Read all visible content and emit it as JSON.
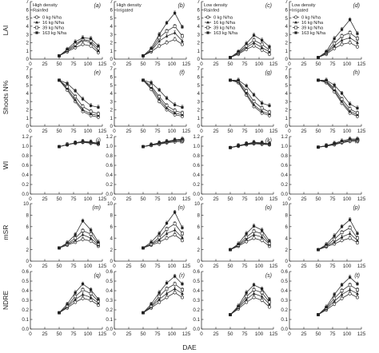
{
  "figure": {
    "xlabel": "DAE"
  },
  "legend": {
    "entries": [
      "0 kg N/ha",
      "16 kg N/ha",
      "39 kg N/ha",
      "163 kg N/ha"
    ],
    "markers": [
      "open-circle",
      "filled-triangle",
      "open-square",
      "filled-square"
    ]
  },
  "chart_data": {
    "type": "line",
    "x": [
      50,
      64,
      78,
      91,
      105,
      118
    ],
    "xlim": [
      0,
      125
    ],
    "xticks": [
      0,
      25,
      50,
      75,
      100,
      125
    ],
    "series_names": [
      "0 kg N/ha",
      "16 kg N/ha",
      "39 kg N/ha",
      "163 kg N/ha"
    ],
    "rows": [
      {
        "ylabel": "LAI",
        "ylim": [
          0,
          7
        ],
        "yticks": [
          0,
          1,
          2,
          3,
          4,
          5,
          6,
          7
        ],
        "ytick_labels": [
          "0",
          "1",
          "2",
          "3",
          "4",
          "5",
          "6",
          "7"
        ]
      },
      {
        "ylabel": "Shoots N%",
        "ylim": [
          0,
          7
        ],
        "yticks": [
          0,
          1,
          2,
          3,
          4,
          5,
          6,
          7
        ],
        "ytick_labels": [
          "0",
          "1",
          "2",
          "3",
          "4",
          "5",
          "6",
          "7"
        ]
      },
      {
        "ylabel": "WI",
        "ylim": [
          0.0,
          1.2
        ],
        "yticks": [
          0.0,
          0.2,
          0.4,
          0.6,
          0.8,
          1.0,
          1.2
        ],
        "ytick_labels": [
          "0.0",
          "0.2",
          "0.4",
          "0.6",
          "0.8",
          "1.0",
          "1.2"
        ]
      },
      {
        "ylabel": "mSR",
        "ylim": [
          0,
          10
        ],
        "yticks": [
          0,
          2,
          4,
          6,
          8,
          10
        ],
        "ytick_labels": [
          "0",
          "2",
          "4",
          "6",
          "8",
          "10"
        ]
      },
      {
        "ylabel": "NDRE",
        "ylim": [
          0.0,
          0.6
        ],
        "yticks": [
          0.0,
          0.1,
          0.2,
          0.3,
          0.4,
          0.5,
          0.6
        ],
        "ytick_labels": [
          "0.0",
          "0.1",
          "0.2",
          "0.3",
          "0.4",
          "0.5",
          "0.6"
        ]
      }
    ],
    "columns": [
      {
        "note": [
          "High density",
          "Rainfed"
        ],
        "legend": true
      },
      {
        "note": [
          "High density",
          "Irrigated"
        ],
        "legend": false
      },
      {
        "note": [
          "Low density",
          "Rainfed"
        ],
        "legend": true
      },
      {
        "note": [
          "Low density",
          "Irrigated"
        ],
        "legend": true
      }
    ],
    "panels": [
      {
        "letter": "(a)",
        "row": 0,
        "col": 0,
        "series": [
          [
            0.4,
            0.9,
            1.4,
            1.8,
            1.6,
            0.8
          ],
          [
            0.4,
            1.0,
            1.6,
            2.3,
            2.0,
            1.0
          ],
          [
            0.4,
            1.1,
            1.8,
            2.4,
            2.2,
            1.3
          ],
          [
            0.4,
            1.2,
            2.1,
            2.6,
            2.5,
            1.6
          ]
        ]
      },
      {
        "letter": "(b)",
        "row": 0,
        "col": 1,
        "series": [
          [
            0.4,
            0.9,
            1.6,
            2.0,
            2.4,
            1.8
          ],
          [
            0.4,
            1.0,
            2.2,
            2.8,
            3.2,
            2.2
          ],
          [
            0.4,
            1.1,
            2.6,
            3.4,
            4.0,
            2.8
          ],
          [
            0.4,
            1.3,
            3.0,
            4.4,
            5.6,
            3.9
          ]
        ]
      },
      {
        "letter": "(c)",
        "row": 0,
        "col": 2,
        "series": [
          [
            0.2,
            0.6,
            1.2,
            1.6,
            1.1,
            0.6
          ],
          [
            0.2,
            0.7,
            1.4,
            2.0,
            1.4,
            0.9
          ],
          [
            0.2,
            0.8,
            1.6,
            2.3,
            1.8,
            1.1
          ],
          [
            0.2,
            0.9,
            1.9,
            2.9,
            2.3,
            1.5
          ]
        ]
      },
      {
        "letter": "(d)",
        "row": 0,
        "col": 3,
        "series": [
          [
            0.2,
            0.6,
            1.3,
            1.8,
            2.0,
            1.5
          ],
          [
            0.2,
            0.7,
            1.6,
            2.3,
            2.6,
            2.0
          ],
          [
            0.2,
            0.8,
            1.9,
            2.8,
            3.2,
            2.5
          ],
          [
            0.2,
            0.9,
            2.5,
            3.6,
            4.8,
            3.1
          ]
        ]
      },
      {
        "letter": "(e)",
        "row": 1,
        "col": 0,
        "series": [
          [
            5.6,
            4.4,
            3.0,
            1.8,
            1.3,
            1.1
          ],
          [
            5.6,
            4.6,
            3.2,
            2.0,
            1.5,
            1.3
          ],
          [
            5.6,
            4.8,
            3.6,
            2.4,
            1.8,
            1.5
          ],
          [
            5.6,
            5.2,
            4.3,
            3.3,
            2.5,
            2.3
          ]
        ]
      },
      {
        "letter": "(f)",
        "row": 1,
        "col": 1,
        "series": [
          [
            5.6,
            4.5,
            3.0,
            2.0,
            1.4,
            1.2
          ],
          [
            5.6,
            4.7,
            3.3,
            2.2,
            1.6,
            1.4
          ],
          [
            5.6,
            4.9,
            3.6,
            2.5,
            1.9,
            1.6
          ],
          [
            5.6,
            5.3,
            4.4,
            3.4,
            2.6,
            2.3
          ]
        ]
      },
      {
        "letter": "(g)",
        "row": 1,
        "col": 2,
        "series": [
          [
            5.6,
            5.3,
            3.8,
            2.4,
            1.6,
            1.3
          ],
          [
            5.6,
            5.4,
            4.0,
            2.6,
            1.8,
            1.5
          ],
          [
            5.6,
            5.5,
            4.3,
            3.0,
            2.2,
            1.7
          ],
          [
            5.6,
            5.6,
            4.9,
            3.8,
            2.8,
            2.5
          ]
        ]
      },
      {
        "letter": "(h)",
        "row": 1,
        "col": 3,
        "series": [
          [
            5.6,
            5.3,
            4.2,
            2.8,
            1.6,
            1.2
          ],
          [
            5.6,
            5.4,
            4.4,
            3.0,
            1.8,
            1.4
          ],
          [
            5.6,
            5.5,
            4.6,
            3.3,
            2.1,
            1.6
          ],
          [
            5.6,
            5.6,
            5.0,
            4.0,
            2.7,
            2.2
          ]
        ]
      },
      {
        "letter": "(i)",
        "row": 2,
        "col": 0,
        "series": [
          [
            0.99,
            1.03,
            1.06,
            1.08,
            1.06,
            1.04
          ],
          [
            0.99,
            1.03,
            1.07,
            1.09,
            1.07,
            1.05
          ],
          [
            0.99,
            1.03,
            1.07,
            1.09,
            1.08,
            1.05
          ],
          [
            0.99,
            1.03,
            1.07,
            1.1,
            1.09,
            1.06
          ]
        ]
      },
      {
        "letter": "(j)",
        "row": 2,
        "col": 1,
        "series": [
          [
            0.99,
            1.02,
            1.04,
            1.07,
            1.09,
            1.1
          ],
          [
            0.99,
            1.02,
            1.05,
            1.08,
            1.11,
            1.12
          ],
          [
            0.99,
            1.02,
            1.06,
            1.09,
            1.12,
            1.13
          ],
          [
            0.99,
            1.03,
            1.07,
            1.1,
            1.13,
            1.15
          ]
        ]
      },
      {
        "letter": "(k)",
        "row": 2,
        "col": 2,
        "series": [
          [
            0.97,
            1.0,
            1.03,
            1.05,
            1.04,
            1.03
          ],
          [
            0.97,
            1.0,
            1.04,
            1.06,
            1.05,
            1.04
          ],
          [
            0.97,
            1.01,
            1.05,
            1.07,
            1.06,
            1.04
          ],
          [
            0.97,
            1.01,
            1.05,
            1.08,
            1.07,
            1.05
          ]
        ]
      },
      {
        "letter": "(l)",
        "row": 2,
        "col": 3,
        "series": [
          [
            0.98,
            1.0,
            1.03,
            1.07,
            1.1,
            1.1
          ],
          [
            0.98,
            1.0,
            1.04,
            1.08,
            1.12,
            1.12
          ],
          [
            0.98,
            1.01,
            1.05,
            1.09,
            1.13,
            1.13
          ],
          [
            0.98,
            1.01,
            1.06,
            1.11,
            1.15,
            1.15
          ]
        ]
      },
      {
        "letter": "(m)",
        "row": 3,
        "col": 0,
        "series": [
          [
            2.3,
            2.8,
            3.3,
            3.8,
            3.5,
            2.6
          ],
          [
            2.3,
            2.9,
            3.6,
            4.6,
            4.0,
            2.8
          ],
          [
            2.3,
            3.0,
            4.0,
            5.3,
            4.7,
            3.0
          ],
          [
            2.3,
            3.2,
            4.6,
            7.0,
            5.4,
            3.3
          ]
        ]
      },
      {
        "letter": "(n)",
        "row": 3,
        "col": 1,
        "series": [
          [
            2.3,
            2.8,
            3.3,
            4.0,
            4.6,
            3.6
          ],
          [
            2.3,
            2.9,
            3.7,
            4.8,
            5.4,
            4.1
          ],
          [
            2.3,
            3.0,
            4.1,
            5.6,
            6.5,
            4.8
          ],
          [
            2.3,
            3.3,
            4.8,
            6.6,
            8.5,
            5.8
          ]
        ]
      },
      {
        "letter": "(o)",
        "row": 3,
        "col": 2,
        "series": [
          [
            2.0,
            2.6,
            3.4,
            4.0,
            3.6,
            2.6
          ],
          [
            2.0,
            2.7,
            3.8,
            4.6,
            4.2,
            2.9
          ],
          [
            2.0,
            2.8,
            4.2,
            5.2,
            4.8,
            3.1
          ],
          [
            2.0,
            3.0,
            4.8,
            6.1,
            5.4,
            3.5
          ]
        ]
      },
      {
        "letter": "(p)",
        "row": 3,
        "col": 3,
        "series": [
          [
            2.0,
            2.5,
            3.0,
            3.6,
            4.0,
            3.2
          ],
          [
            2.0,
            2.6,
            3.3,
            4.2,
            4.8,
            3.6
          ],
          [
            2.0,
            2.7,
            3.8,
            5.0,
            5.8,
            4.0
          ],
          [
            2.0,
            2.9,
            4.4,
            6.0,
            7.2,
            4.8
          ]
        ]
      },
      {
        "letter": "(q)",
        "row": 4,
        "col": 0,
        "series": [
          [
            0.17,
            0.22,
            0.28,
            0.32,
            0.3,
            0.25
          ],
          [
            0.17,
            0.23,
            0.31,
            0.36,
            0.33,
            0.27
          ],
          [
            0.17,
            0.24,
            0.34,
            0.41,
            0.37,
            0.29
          ],
          [
            0.17,
            0.26,
            0.38,
            0.47,
            0.41,
            0.31
          ]
        ]
      },
      {
        "letter": "(r)",
        "row": 4,
        "col": 1,
        "series": [
          [
            0.17,
            0.22,
            0.28,
            0.33,
            0.38,
            0.33
          ],
          [
            0.17,
            0.23,
            0.31,
            0.37,
            0.42,
            0.37
          ],
          [
            0.17,
            0.24,
            0.34,
            0.42,
            0.47,
            0.41
          ],
          [
            0.17,
            0.26,
            0.38,
            0.48,
            0.55,
            0.47
          ]
        ]
      },
      {
        "letter": "(s)",
        "row": 4,
        "col": 2,
        "series": [
          [
            0.15,
            0.21,
            0.28,
            0.33,
            0.3,
            0.23
          ],
          [
            0.15,
            0.22,
            0.31,
            0.37,
            0.34,
            0.26
          ],
          [
            0.15,
            0.23,
            0.34,
            0.41,
            0.38,
            0.28
          ],
          [
            0.15,
            0.24,
            0.38,
            0.46,
            0.42,
            0.31
          ]
        ]
      },
      {
        "letter": "(t)",
        "row": 4,
        "col": 3,
        "series": [
          [
            0.15,
            0.2,
            0.26,
            0.32,
            0.37,
            0.33
          ],
          [
            0.15,
            0.21,
            0.29,
            0.36,
            0.41,
            0.37
          ],
          [
            0.15,
            0.22,
            0.32,
            0.4,
            0.46,
            0.41
          ],
          [
            0.15,
            0.23,
            0.36,
            0.46,
            0.54,
            0.47
          ]
        ]
      }
    ]
  }
}
